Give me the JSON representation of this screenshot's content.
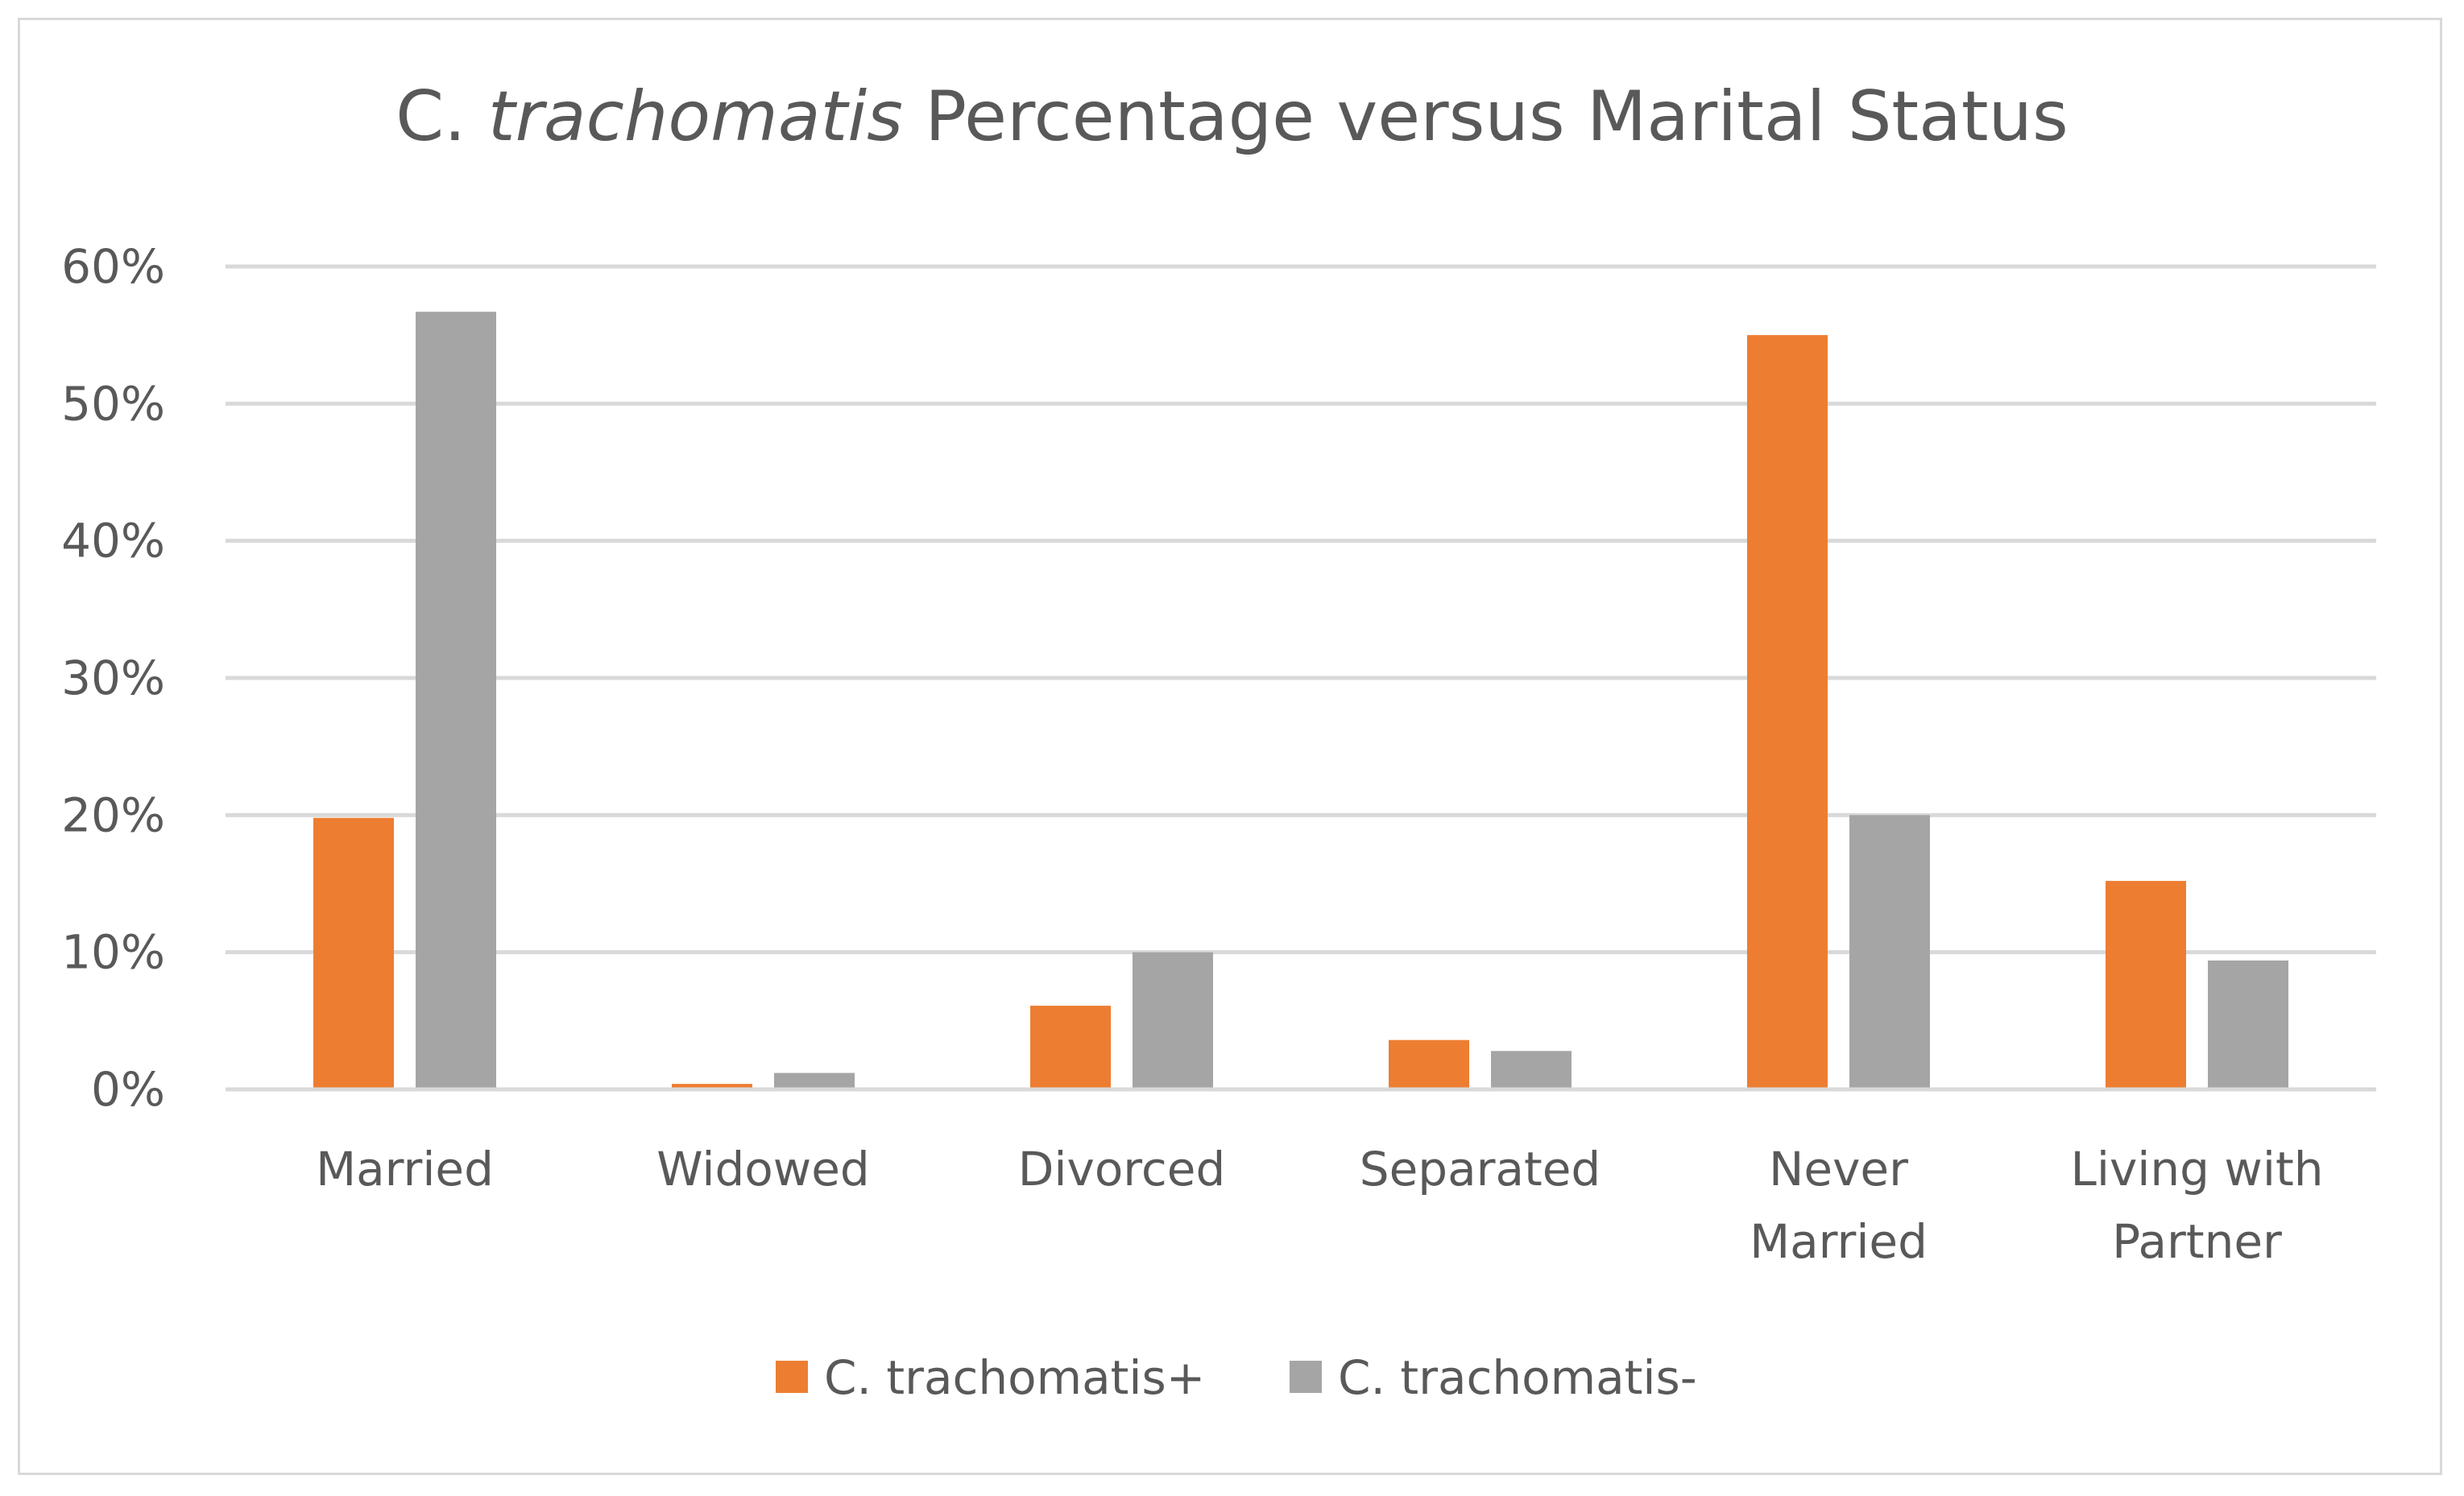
{
  "chart_data": {
    "type": "bar",
    "title": "C. trachomatis Percentage versus Marital Status",
    "title_parts": {
      "prefix": "C. ",
      "italic": "trachomatis",
      "suffix": " Percentage versus Marital Status"
    },
    "categories": [
      [
        "Married"
      ],
      [
        "Widowed"
      ],
      [
        "Divorced"
      ],
      [
        "Separated"
      ],
      [
        "Never",
        "Married"
      ],
      [
        "Living with",
        "Partner"
      ]
    ],
    "series": [
      {
        "name": "C. trachomatis+",
        "color": "#ed7d31",
        "values": [
          19.8,
          0.4,
          6.1,
          3.6,
          55.0,
          15.2
        ]
      },
      {
        "name": "C. trachomatis-",
        "color": "#a5a5a5",
        "values": [
          56.7,
          1.2,
          10.0,
          2.8,
          20.0,
          9.4
        ]
      }
    ],
    "y_ticks": [
      "0%",
      "10%",
      "20%",
      "30%",
      "40%",
      "50%",
      "60%"
    ],
    "ylim": [
      0,
      60
    ],
    "y_unit": "%",
    "grid": true,
    "gridline_color": "#d9d9d9",
    "legend_position": "bottom",
    "xlabel": "",
    "ylabel": ""
  }
}
